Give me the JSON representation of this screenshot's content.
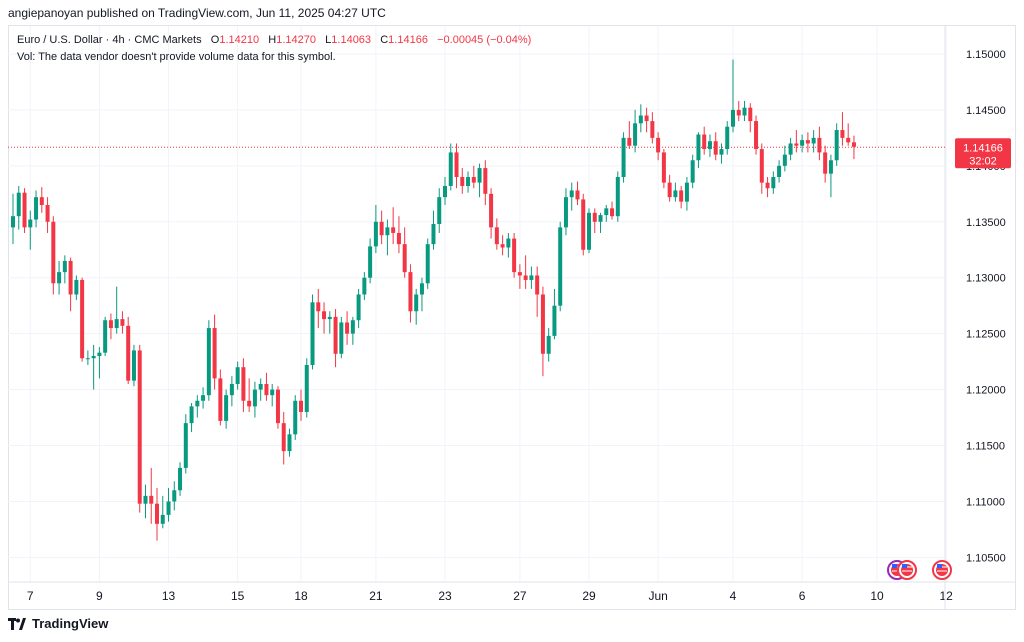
{
  "header": {
    "text": "angiepanoyan published on TradingView.com, Jun 11, 2025 04:27 UTC"
  },
  "legend": {
    "symbol": "Euro / U.S. Dollar · 4h · CMC Markets",
    "o_label": "O",
    "o": "1.14210",
    "h_label": "H",
    "h": "1.14270",
    "l_label": "L",
    "l": "1.14063",
    "c_label": "C",
    "c": "1.14166",
    "change": "−0.00045 (−0.04%)",
    "vol_note": "Vol: The data vendor doesn't provide volume data for this symbol."
  },
  "footer": {
    "brand": "TradingView"
  },
  "colors": {
    "up": "#089981",
    "down": "#f23645",
    "grid": "#f0f3fa",
    "text": "#131722"
  },
  "chart_data": {
    "type": "candlestick",
    "timeframe": "4h",
    "ylim": [
      1.1028,
      1.1525
    ],
    "yticks": [
      "1.15000",
      "1.14500",
      "1.14000",
      "1.13500",
      "1.13000",
      "1.12500",
      "1.12000",
      "1.11500",
      "1.11000",
      "1.10500"
    ],
    "xticks": [
      {
        "label": "7",
        "i": 3
      },
      {
        "label": "9",
        "i": 15
      },
      {
        "label": "13",
        "i": 27
      },
      {
        "label": "15",
        "i": 39
      },
      {
        "label": "18",
        "i": 50
      },
      {
        "label": "21",
        "i": 63
      },
      {
        "label": "23",
        "i": 75
      },
      {
        "label": "27",
        "i": 88
      },
      {
        "label": "29",
        "i": 100
      },
      {
        "label": "Jun",
        "i": 112
      },
      {
        "label": "4",
        "i": 125
      },
      {
        "label": "6",
        "i": 137
      },
      {
        "label": "10",
        "i": 150
      },
      {
        "label": "12",
        "i": 162
      }
    ],
    "last_price": {
      "price_label": "1.14166",
      "countdown": "32:02",
      "value": 1.14166
    },
    "candles": [
      [
        1.1345,
        1.1375,
        1.133,
        1.1355
      ],
      [
        1.1355,
        1.1382,
        1.1343,
        1.1376
      ],
      [
        1.1376,
        1.138,
        1.134,
        1.1345
      ],
      [
        1.1345,
        1.136,
        1.1325,
        1.1352
      ],
      [
        1.1352,
        1.1378,
        1.1345,
        1.1372
      ],
      [
        1.1372,
        1.1381,
        1.1358,
        1.1365
      ],
      [
        1.1365,
        1.1372,
        1.134,
        1.135
      ],
      [
        1.135,
        1.1355,
        1.1285,
        1.1295
      ],
      [
        1.1295,
        1.1315,
        1.1285,
        1.1305
      ],
      [
        1.1305,
        1.132,
        1.1295,
        1.1315
      ],
      [
        1.1315,
        1.1318,
        1.127,
        1.1285
      ],
      [
        1.1285,
        1.1302,
        1.128,
        1.1298
      ],
      [
        1.1298,
        1.13,
        1.1225,
        1.1228
      ],
      [
        1.1228,
        1.1235,
        1.1222,
        1.1228
      ],
      [
        1.1228,
        1.124,
        1.12,
        1.123
      ],
      [
        1.123,
        1.1238,
        1.121,
        1.1233
      ],
      [
        1.1233,
        1.1265,
        1.123,
        1.1262
      ],
      [
        1.1262,
        1.1268,
        1.1245,
        1.1255
      ],
      [
        1.1255,
        1.1292,
        1.125,
        1.1263
      ],
      [
        1.1263,
        1.127,
        1.125,
        1.1257
      ],
      [
        1.1257,
        1.1265,
        1.1205,
        1.1208
      ],
      [
        1.1208,
        1.124,
        1.1203,
        1.1235
      ],
      [
        1.1235,
        1.124,
        1.109,
        1.1098
      ],
      [
        1.1098,
        1.1115,
        1.1085,
        1.1105
      ],
      [
        1.1105,
        1.113,
        1.108,
        1.1098
      ],
      [
        1.1098,
        1.1112,
        1.1065,
        1.108
      ],
      [
        1.108,
        1.1105,
        1.1076,
        1.1088
      ],
      [
        1.1088,
        1.1112,
        1.1082,
        1.11
      ],
      [
        1.11,
        1.1118,
        1.1092,
        1.111
      ],
      [
        1.111,
        1.1135,
        1.1105,
        1.113
      ],
      [
        1.113,
        1.1178,
        1.1125,
        1.117
      ],
      [
        1.117,
        1.1188,
        1.1162,
        1.1185
      ],
      [
        1.1185,
        1.1195,
        1.1175,
        1.119
      ],
      [
        1.119,
        1.1202,
        1.1183,
        1.1195
      ],
      [
        1.1195,
        1.1262,
        1.119,
        1.1255
      ],
      [
        1.1255,
        1.1267,
        1.12,
        1.121
      ],
      [
        1.121,
        1.1218,
        1.1168,
        1.1172
      ],
      [
        1.1172,
        1.12,
        1.1165,
        1.1195
      ],
      [
        1.1195,
        1.1212,
        1.1185,
        1.1205
      ],
      [
        1.1205,
        1.1225,
        1.12,
        1.122
      ],
      [
        1.122,
        1.1228,
        1.118,
        1.119
      ],
      [
        1.119,
        1.121,
        1.118,
        1.1185
      ],
      [
        1.1185,
        1.1207,
        1.1175,
        1.12
      ],
      [
        1.12,
        1.121,
        1.119,
        1.1205
      ],
      [
        1.1205,
        1.1215,
        1.119,
        1.1195
      ],
      [
        1.1195,
        1.1205,
        1.1185,
        1.12
      ],
      [
        1.12,
        1.1203,
        1.1165,
        1.117
      ],
      [
        1.117,
        1.118,
        1.1133,
        1.1145
      ],
      [
        1.1145,
        1.1165,
        1.114,
        1.116
      ],
      [
        1.116,
        1.1195,
        1.1155,
        1.119
      ],
      [
        1.119,
        1.12,
        1.1172,
        1.118
      ],
      [
        1.118,
        1.1228,
        1.1175,
        1.1222
      ],
      [
        1.1222,
        1.1285,
        1.1218,
        1.1278
      ],
      [
        1.1278,
        1.129,
        1.1255,
        1.127
      ],
      [
        1.127,
        1.1278,
        1.125,
        1.1263
      ],
      [
        1.1263,
        1.127,
        1.125,
        1.1265
      ],
      [
        1.1265,
        1.1272,
        1.122,
        1.1232
      ],
      [
        1.1232,
        1.1265,
        1.1228,
        1.126
      ],
      [
        1.126,
        1.127,
        1.124,
        1.125
      ],
      [
        1.125,
        1.1265,
        1.124,
        1.1262
      ],
      [
        1.1262,
        1.129,
        1.1255,
        1.1285
      ],
      [
        1.1285,
        1.1305,
        1.128,
        1.13
      ],
      [
        1.13,
        1.1335,
        1.1295,
        1.1328
      ],
      [
        1.1328,
        1.1365,
        1.1322,
        1.135
      ],
      [
        1.135,
        1.136,
        1.133,
        1.1338
      ],
      [
        1.1338,
        1.1352,
        1.132,
        1.1345
      ],
      [
        1.1345,
        1.1363,
        1.133,
        1.134
      ],
      [
        1.134,
        1.1355,
        1.1322,
        1.133
      ],
      [
        1.133,
        1.1345,
        1.13,
        1.1305
      ],
      [
        1.1305,
        1.1312,
        1.126,
        1.127
      ],
      [
        1.127,
        1.129,
        1.1258,
        1.1285
      ],
      [
        1.1285,
        1.13,
        1.127,
        1.1295
      ],
      [
        1.1295,
        1.1335,
        1.129,
        1.133
      ],
      [
        1.133,
        1.136,
        1.1325,
        1.1348
      ],
      [
        1.1348,
        1.138,
        1.134,
        1.1372
      ],
      [
        1.1372,
        1.139,
        1.1365,
        1.1382
      ],
      [
        1.1382,
        1.142,
        1.1378,
        1.1412
      ],
      [
        1.1412,
        1.142,
        1.138,
        1.139
      ],
      [
        1.139,
        1.1398,
        1.1375,
        1.1382
      ],
      [
        1.1382,
        1.1395,
        1.1376,
        1.139
      ],
      [
        1.139,
        1.14,
        1.138,
        1.1385
      ],
      [
        1.1385,
        1.1402,
        1.1372,
        1.1398
      ],
      [
        1.1398,
        1.1405,
        1.1365,
        1.1375
      ],
      [
        1.1375,
        1.138,
        1.1335,
        1.1345
      ],
      [
        1.1345,
        1.1353,
        1.1325,
        1.133
      ],
      [
        1.133,
        1.1338,
        1.132,
        1.1327
      ],
      [
        1.1327,
        1.134,
        1.1318,
        1.1335
      ],
      [
        1.1335,
        1.134,
        1.13,
        1.1305
      ],
      [
        1.1305,
        1.1312,
        1.129,
        1.1302
      ],
      [
        1.1302,
        1.132,
        1.129,
        1.1298
      ],
      [
        1.1298,
        1.131,
        1.129,
        1.1302
      ],
      [
        1.1302,
        1.131,
        1.1265,
        1.1285
      ],
      [
        1.1285,
        1.1292,
        1.1212,
        1.1232
      ],
      [
        1.1232,
        1.1255,
        1.1225,
        1.1248
      ],
      [
        1.1248,
        1.129,
        1.1245,
        1.1275
      ],
      [
        1.1275,
        1.135,
        1.127,
        1.1345
      ],
      [
        1.1345,
        1.138,
        1.1338,
        1.1372
      ],
      [
        1.1372,
        1.1385,
        1.136,
        1.1378
      ],
      [
        1.1378,
        1.1386,
        1.1365,
        1.137
      ],
      [
        1.137,
        1.1375,
        1.132,
        1.1325
      ],
      [
        1.1325,
        1.1362,
        1.1322,
        1.1358
      ],
      [
        1.1358,
        1.1362,
        1.134,
        1.135
      ],
      [
        1.135,
        1.1358,
        1.134,
        1.1356
      ],
      [
        1.1356,
        1.1365,
        1.135,
        1.1362
      ],
      [
        1.1362,
        1.1368,
        1.1352,
        1.1355
      ],
      [
        1.1355,
        1.1395,
        1.135,
        1.139
      ],
      [
        1.139,
        1.143,
        1.1385,
        1.1425
      ],
      [
        1.1425,
        1.144,
        1.1415,
        1.1418
      ],
      [
        1.1418,
        1.145,
        1.1412,
        1.1438
      ],
      [
        1.1438,
        1.1455,
        1.143,
        1.1445
      ],
      [
        1.1445,
        1.1452,
        1.143,
        1.144
      ],
      [
        1.144,
        1.1448,
        1.142,
        1.1425
      ],
      [
        1.1425,
        1.143,
        1.1405,
        1.1412
      ],
      [
        1.1412,
        1.1415,
        1.138,
        1.1385
      ],
      [
        1.1385,
        1.1392,
        1.1368,
        1.1372
      ],
      [
        1.1372,
        1.1385,
        1.1368,
        1.1378
      ],
      [
        1.1378,
        1.1382,
        1.1362,
        1.1368
      ],
      [
        1.1368,
        1.139,
        1.136,
        1.1385
      ],
      [
        1.1385,
        1.141,
        1.138,
        1.1405
      ],
      [
        1.1405,
        1.143,
        1.1398,
        1.1428
      ],
      [
        1.1428,
        1.1435,
        1.141,
        1.1415
      ],
      [
        1.1415,
        1.1428,
        1.1408,
        1.1422
      ],
      [
        1.1422,
        1.143,
        1.1405,
        1.141
      ],
      [
        1.141,
        1.142,
        1.1402,
        1.1415
      ],
      [
        1.1415,
        1.144,
        1.141,
        1.1435
      ],
      [
        1.1435,
        1.1495,
        1.143,
        1.145
      ],
      [
        1.145,
        1.1458,
        1.144,
        1.1445
      ],
      [
        1.1445,
        1.1458,
        1.144,
        1.1452
      ],
      [
        1.1452,
        1.1456,
        1.143,
        1.144
      ],
      [
        1.144,
        1.1445,
        1.141,
        1.1415
      ],
      [
        1.1415,
        1.142,
        1.1375,
        1.1385
      ],
      [
        1.1385,
        1.139,
        1.1372,
        1.138
      ],
      [
        1.138,
        1.1395,
        1.1375,
        1.139
      ],
      [
        1.139,
        1.1405,
        1.1385,
        1.14
      ],
      [
        1.14,
        1.1418,
        1.1395,
        1.141
      ],
      [
        1.141,
        1.1425,
        1.1405,
        1.142
      ],
      [
        1.142,
        1.1432,
        1.1412,
        1.1418
      ],
      [
        1.1418,
        1.1428,
        1.1412,
        1.1423
      ],
      [
        1.1423,
        1.143,
        1.1412,
        1.142
      ],
      [
        1.142,
        1.1432,
        1.1412,
        1.1425
      ],
      [
        1.1425,
        1.1435,
        1.1405,
        1.1412
      ],
      [
        1.1412,
        1.1418,
        1.1385,
        1.1393
      ],
      [
        1.1393,
        1.141,
        1.1372,
        1.1405
      ],
      [
        1.1405,
        1.1438,
        1.14,
        1.1432
      ],
      [
        1.1432,
        1.1448,
        1.1418,
        1.1425
      ],
      [
        1.1425,
        1.1438,
        1.1418,
        1.1421
      ],
      [
        1.1421,
        1.1427,
        1.1406,
        1.1417
      ]
    ]
  }
}
